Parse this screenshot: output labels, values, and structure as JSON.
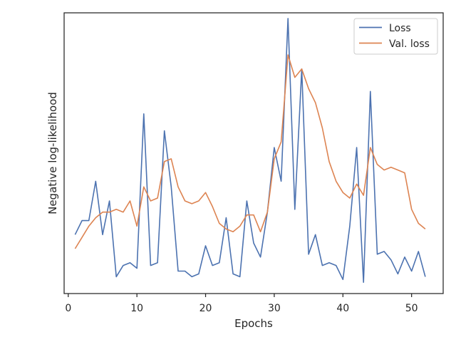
{
  "chart_data": {
    "type": "line",
    "title": "",
    "xlabel": "Epochs",
    "ylabel": "Negative log-likelihood",
    "xlim": [
      -0.6,
      54.6
    ],
    "ylim": [
      0,
      1
    ],
    "y_ticks_labeled": false,
    "grid": false,
    "legend_position": "upper right",
    "x_ticks": [
      0,
      10,
      20,
      30,
      40,
      50
    ],
    "x_tick_labels": [
      "0",
      "10",
      "20",
      "30",
      "40",
      "50"
    ],
    "x": [
      1,
      2,
      3,
      4,
      5,
      6,
      7,
      8,
      9,
      10,
      11,
      12,
      13,
      14,
      15,
      16,
      17,
      18,
      19,
      20,
      21,
      22,
      23,
      24,
      25,
      26,
      27,
      28,
      29,
      30,
      31,
      32,
      33,
      34,
      35,
      36,
      37,
      38,
      39,
      40,
      41,
      42,
      43,
      44,
      45,
      46,
      47,
      48,
      49,
      50,
      51,
      52
    ],
    "series": [
      {
        "name": "Loss",
        "color": "#4c72b0",
        "values": [
          0.21,
          0.26,
          0.26,
          0.4,
          0.21,
          0.33,
          0.06,
          0.1,
          0.11,
          0.09,
          0.64,
          0.1,
          0.11,
          0.58,
          0.38,
          0.08,
          0.08,
          0.06,
          0.07,
          0.17,
          0.1,
          0.11,
          0.27,
          0.07,
          0.06,
          0.33,
          0.18,
          0.13,
          0.29,
          0.52,
          0.4,
          0.98,
          0.3,
          0.8,
          0.14,
          0.21,
          0.1,
          0.11,
          0.1,
          0.05,
          0.24,
          0.52,
          0.04,
          0.72,
          0.14,
          0.15,
          0.12,
          0.07,
          0.13,
          0.08,
          0.15,
          0.06
        ]
      },
      {
        "name": "Val. loss",
        "color": "#dd8452",
        "values": [
          0.16,
          0.2,
          0.24,
          0.27,
          0.29,
          0.29,
          0.3,
          0.29,
          0.33,
          0.24,
          0.38,
          0.33,
          0.34,
          0.47,
          0.48,
          0.38,
          0.33,
          0.32,
          0.33,
          0.36,
          0.31,
          0.25,
          0.23,
          0.22,
          0.24,
          0.28,
          0.28,
          0.22,
          0.29,
          0.48,
          0.54,
          0.85,
          0.77,
          0.8,
          0.73,
          0.68,
          0.59,
          0.47,
          0.4,
          0.36,
          0.34,
          0.39,
          0.35,
          0.52,
          0.46,
          0.44,
          0.45,
          0.44,
          0.43,
          0.3,
          0.25,
          0.23
        ]
      }
    ]
  }
}
